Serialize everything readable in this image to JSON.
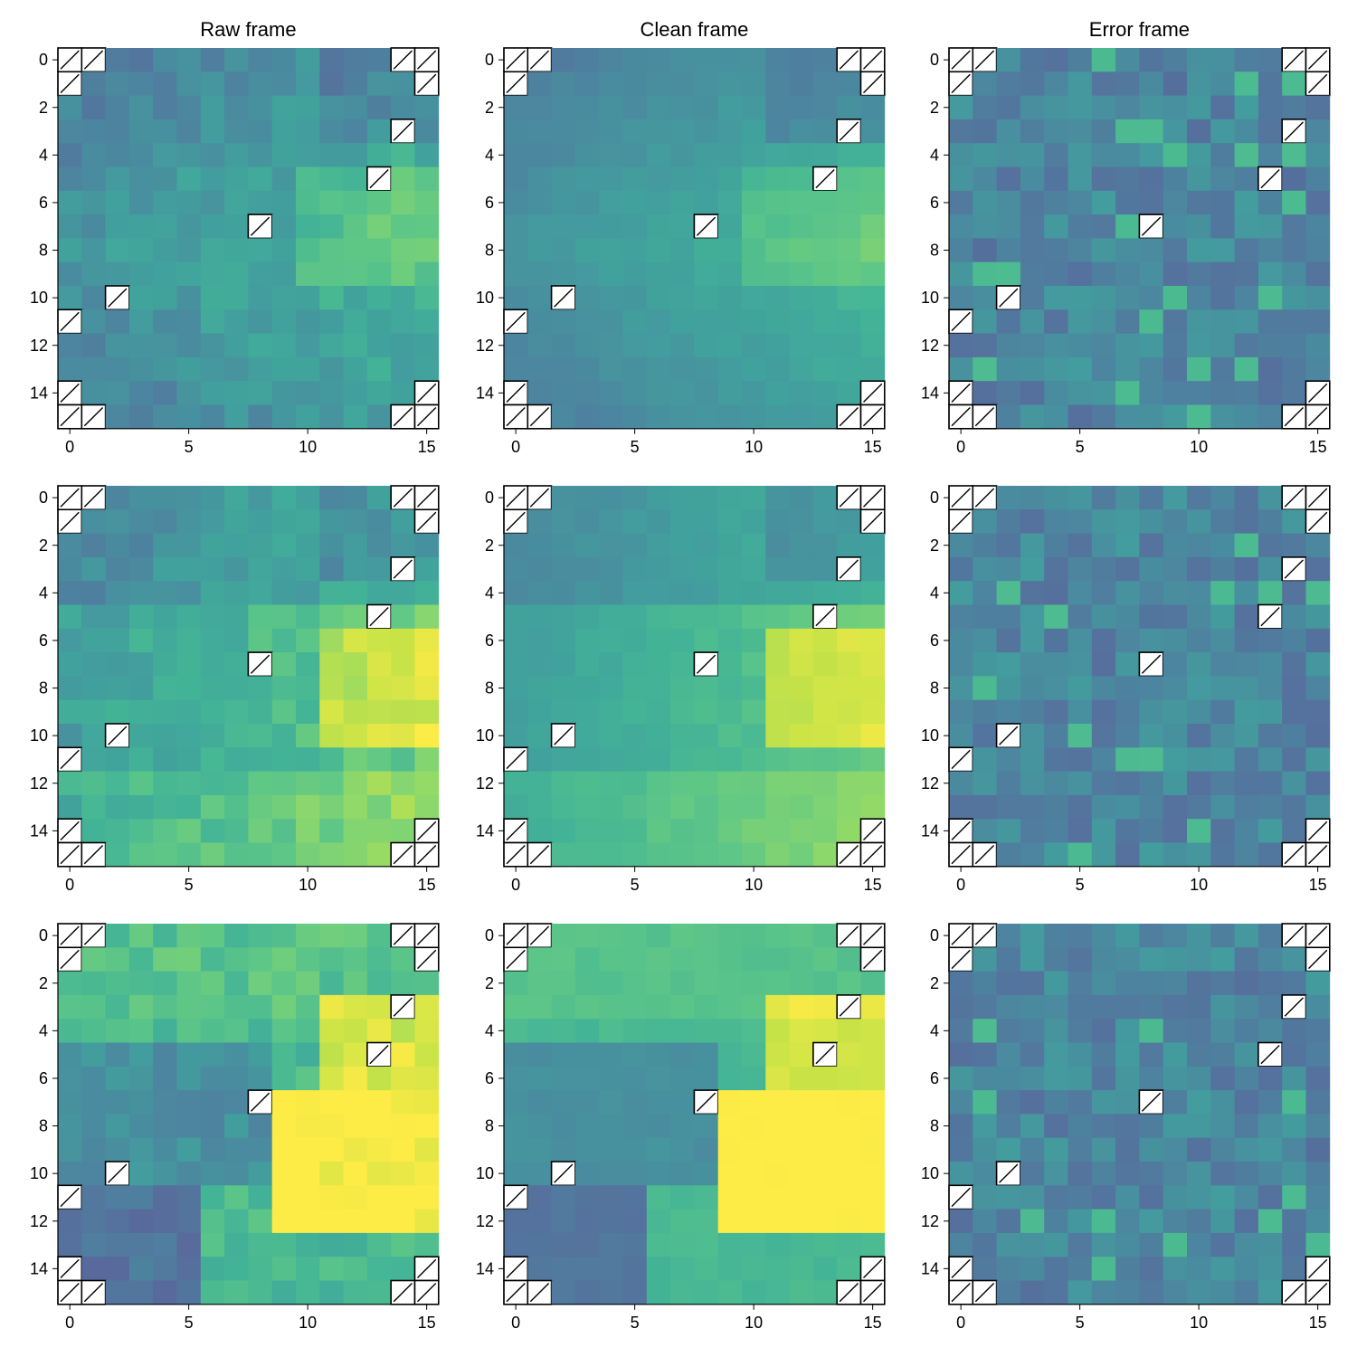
{
  "chart_data": {
    "type": "heatmap",
    "grid_size": 16,
    "colormap": "viridis",
    "masked_cell_style": "white square with black diagonal hatch",
    "masked_cells": [
      [
        0,
        0
      ],
      [
        0,
        1
      ],
      [
        0,
        14
      ],
      [
        0,
        15
      ],
      [
        1,
        0
      ],
      [
        1,
        15
      ],
      [
        3,
        14
      ],
      [
        5,
        13
      ],
      [
        7,
        8
      ],
      [
        10,
        2
      ],
      [
        11,
        0
      ],
      [
        14,
        0
      ],
      [
        14,
        15
      ],
      [
        15,
        0
      ],
      [
        15,
        1
      ],
      [
        15,
        14
      ],
      [
        15,
        15
      ]
    ],
    "column_titles": [
      "Raw frame",
      "Clean frame",
      "Error frame"
    ],
    "x_ticks": [
      0,
      5,
      10,
      15
    ],
    "y_ticks": [
      0,
      2,
      4,
      6,
      8,
      10,
      12,
      14
    ],
    "xlim": [
      -0.5,
      15.5
    ],
    "ylim": [
      15.5,
      -0.5
    ],
    "grid": false,
    "panels": [
      {
        "row": 0,
        "title": "Raw frame",
        "seed": 11,
        "style": "raw",
        "base": "b1"
      },
      {
        "row": 0,
        "title": "Clean frame",
        "seed": 12,
        "style": "clean",
        "base": "b1"
      },
      {
        "row": 0,
        "title": "Error frame",
        "seed": 13,
        "style": "error",
        "base": "b1"
      },
      {
        "row": 1,
        "title": "Raw frame",
        "seed": 21,
        "style": "raw",
        "base": "b2"
      },
      {
        "row": 1,
        "title": "Clean frame",
        "seed": 22,
        "style": "clean",
        "base": "b2"
      },
      {
        "row": 1,
        "title": "Error frame",
        "seed": 23,
        "style": "error",
        "base": "b2"
      },
      {
        "row": 2,
        "title": "Raw frame",
        "seed": 31,
        "style": "raw",
        "base": "b3"
      },
      {
        "row": 2,
        "title": "Clean frame",
        "seed": 32,
        "style": "clean",
        "base": "b3"
      },
      {
        "row": 2,
        "title": "Error frame",
        "seed": 33,
        "style": "error",
        "base": "b3"
      }
    ]
  }
}
